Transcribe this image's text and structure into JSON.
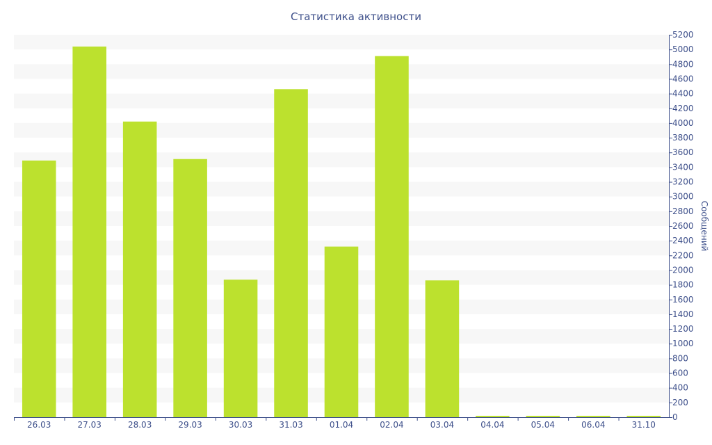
{
  "chart_data": {
    "type": "bar",
    "title": "Статистика активности",
    "xlabel": "",
    "ylabel": "Сообщений",
    "y_axis_side": "right",
    "ylim": [
      0,
      5200
    ],
    "ytick_step": 200,
    "grid": "alternating horizontal bands",
    "categories": [
      "26.03",
      "27.03",
      "28.03",
      "29.03",
      "30.03",
      "31.03",
      "01.04",
      "02.04",
      "03.04",
      "04.04",
      "05.04",
      "06.04",
      "31.10"
    ],
    "values": [
      3490,
      5040,
      4020,
      3510,
      1870,
      4460,
      2320,
      4910,
      1860,
      15,
      15,
      15,
      15
    ],
    "colors": {
      "bar": "#bce12e",
      "band": "#f7f7f7",
      "axis": "#3d4f8a",
      "text": "#3d4f8a"
    }
  }
}
